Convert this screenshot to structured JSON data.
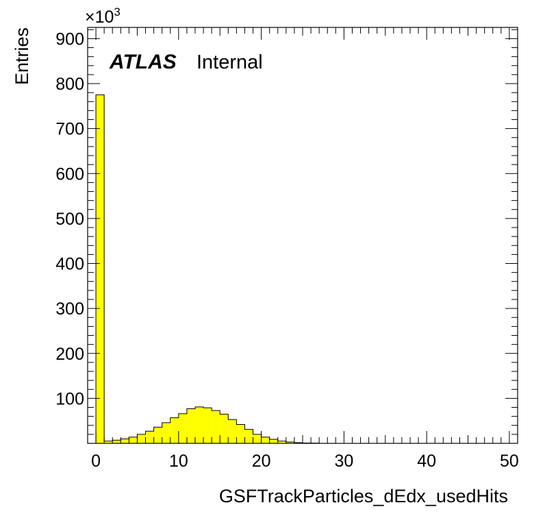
{
  "chart_data": {
    "type": "bar",
    "xlabel": "GSFTrackParticles_dEdx_usedHits",
    "ylabel": "Entries",
    "y_exponent_base": "×10",
    "y_exponent_power": "3",
    "annotation_bold": "ATLAS",
    "annotation_text": "Internal",
    "xlim": [
      -1,
      51
    ],
    "ylim": [
      0,
      925
    ],
    "x_ticks": [
      0,
      10,
      20,
      30,
      40,
      50
    ],
    "y_ticks": [
      100,
      200,
      300,
      400,
      500,
      600,
      700,
      800,
      900
    ],
    "bin_width": 1,
    "fill_color": "#ffff00",
    "edge_color": "#000000",
    "bins": [
      {
        "x": 0,
        "value": 775
      },
      {
        "x": 1,
        "value": 5
      },
      {
        "x": 2,
        "value": 7
      },
      {
        "x": 3,
        "value": 10
      },
      {
        "x": 4,
        "value": 14
      },
      {
        "x": 5,
        "value": 20
      },
      {
        "x": 6,
        "value": 27
      },
      {
        "x": 7,
        "value": 36
      },
      {
        "x": 8,
        "value": 46
      },
      {
        "x": 9,
        "value": 57
      },
      {
        "x": 10,
        "value": 66
      },
      {
        "x": 11,
        "value": 77
      },
      {
        "x": 12,
        "value": 81
      },
      {
        "x": 13,
        "value": 79
      },
      {
        "x": 14,
        "value": 73
      },
      {
        "x": 15,
        "value": 65
      },
      {
        "x": 16,
        "value": 53
      },
      {
        "x": 17,
        "value": 42
      },
      {
        "x": 18,
        "value": 31
      },
      {
        "x": 19,
        "value": 20
      },
      {
        "x": 20,
        "value": 14
      },
      {
        "x": 21,
        "value": 9
      },
      {
        "x": 22,
        "value": 5
      },
      {
        "x": 23,
        "value": 3
      },
      {
        "x": 24,
        "value": 1.5
      },
      {
        "x": 25,
        "value": 0.8
      },
      {
        "x": 26,
        "value": 0.5
      }
    ]
  }
}
